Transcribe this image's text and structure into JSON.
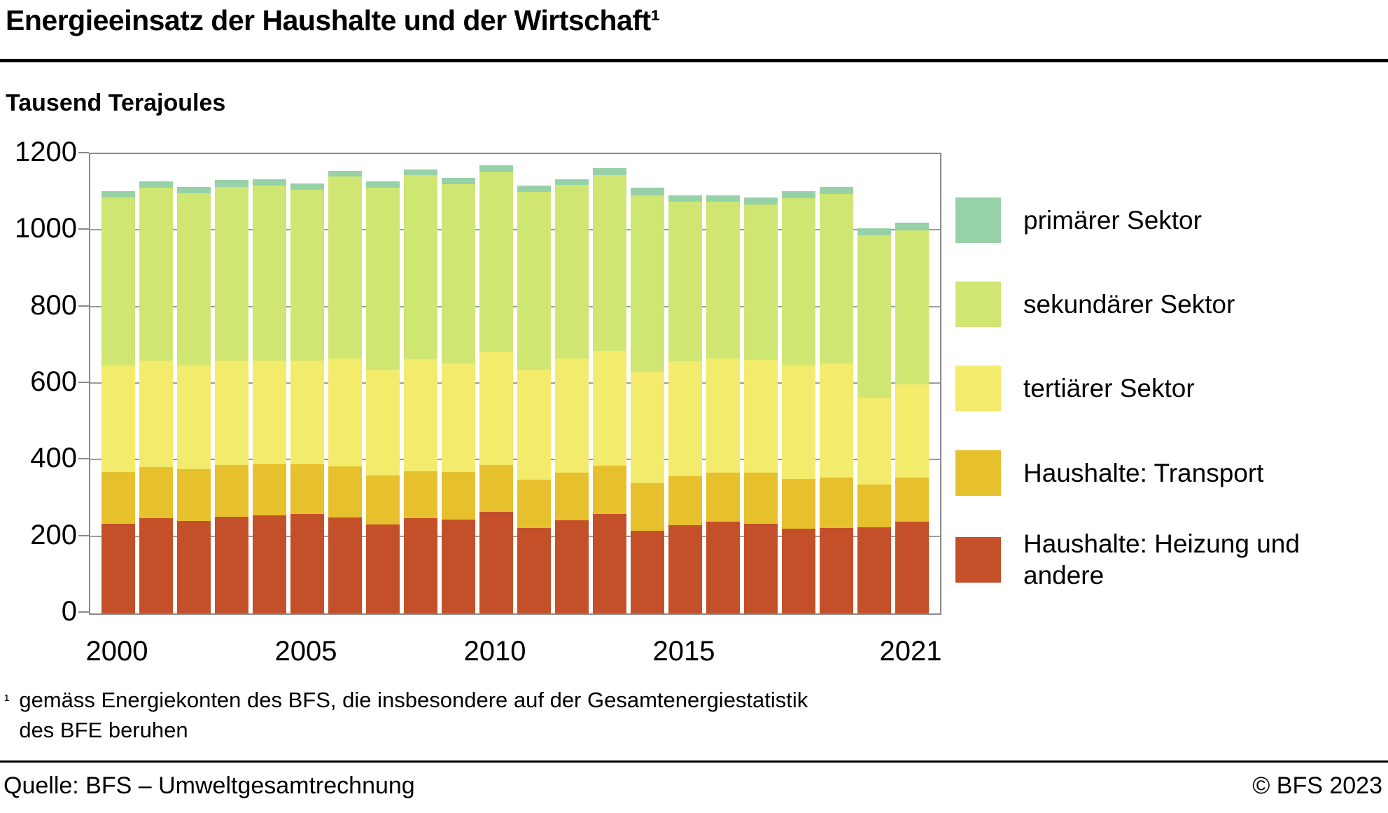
{
  "header": {
    "title": "Energieeinsatz der Haushalte und der Wirtschaft¹",
    "subtitle": "Tausend Terajoules"
  },
  "footnote": {
    "marker": "¹",
    "line1": "gemäss Energiekonten des BFS, die insbesondere auf der Gesamtenergiestatistik",
    "line2": "des BFE beruhen"
  },
  "footer": {
    "source": "Quelle: BFS – Umweltgesamtrechnung",
    "copyright": "© BFS 2023"
  },
  "colors": {
    "primaer": "#97d1a8",
    "sekundaer": "#cfe673",
    "tertiaer": "#f3eb6c",
    "transport": "#e7c02e",
    "heizung": "#c4502a",
    "grid": "#9e9e9e",
    "axis": "#8a8a8a"
  },
  "chart_data": {
    "type": "bar",
    "stacked": true,
    "title": "Energieeinsatz der Haushalte und der Wirtschaft",
    "ylabel": "Tausend Terajoules",
    "ylim": [
      0,
      1200
    ],
    "yticks": [
      0,
      200,
      400,
      600,
      800,
      1000,
      1200
    ],
    "grid": true,
    "legend_position": "right",
    "categories": [
      2000,
      2001,
      2002,
      2003,
      2004,
      2005,
      2006,
      2007,
      2008,
      2009,
      2010,
      2011,
      2012,
      2013,
      2014,
      2015,
      2016,
      2017,
      2018,
      2019,
      2020,
      2021
    ],
    "x_tick_labels": [
      {
        "label": "2000",
        "bar_index": 0
      },
      {
        "label": "2005",
        "bar_index": 5
      },
      {
        "label": "2010",
        "bar_index": 10
      },
      {
        "label": "2015",
        "bar_index": 15
      },
      {
        "label": "2021",
        "bar_index": 21
      }
    ],
    "series": [
      {
        "name": "Haushalte: Heizung und andere",
        "color_key": "heizung",
        "values": [
          234,
          248,
          242,
          253,
          256,
          260,
          251,
          232,
          248,
          245,
          265,
          224,
          244,
          259,
          216,
          231,
          239,
          234,
          222,
          224,
          225,
          239
        ]
      },
      {
        "name": "Haushalte: Transport",
        "color_key": "transport",
        "values": [
          136,
          135,
          134,
          134,
          133,
          130,
          133,
          128,
          124,
          124,
          123,
          125,
          124,
          127,
          125,
          127,
          129,
          133,
          130,
          130,
          112,
          116
        ]
      },
      {
        "name": "tertiärer Sektor",
        "color_key": "tertiaer",
        "values": [
          278,
          277,
          272,
          273,
          271,
          270,
          281,
          277,
          292,
          285,
          295,
          287,
          297,
          300,
          290,
          300,
          297,
          295,
          295,
          299,
          227,
          244
        ]
      },
      {
        "name": "sekundärer Sektor",
        "color_key": "sekundaer",
        "values": [
          439,
          452,
          450,
          455,
          457,
          446,
          477,
          476,
          481,
          467,
          470,
          465,
          455,
          460,
          462,
          417,
          410,
          407,
          437,
          442,
          423,
          402
        ]
      },
      {
        "name": "primärer Sektor",
        "color_key": "primaer",
        "values": [
          17,
          17,
          17,
          17,
          17,
          17,
          15,
          15,
          15,
          16,
          17,
          17,
          15,
          18,
          19,
          17,
          17,
          18,
          19,
          19,
          19,
          19
        ]
      }
    ],
    "legend": [
      {
        "label": "primärer Sektor",
        "color_key": "primaer"
      },
      {
        "label": "sekundärer Sektor",
        "color_key": "sekundaer"
      },
      {
        "label": "tertiärer Sektor",
        "color_key": "tertiaer"
      },
      {
        "label": "Haushalte: Transport",
        "color_key": "transport"
      },
      {
        "label": "Haushalte: Heizung und andere",
        "color_key": "heizung"
      }
    ]
  }
}
